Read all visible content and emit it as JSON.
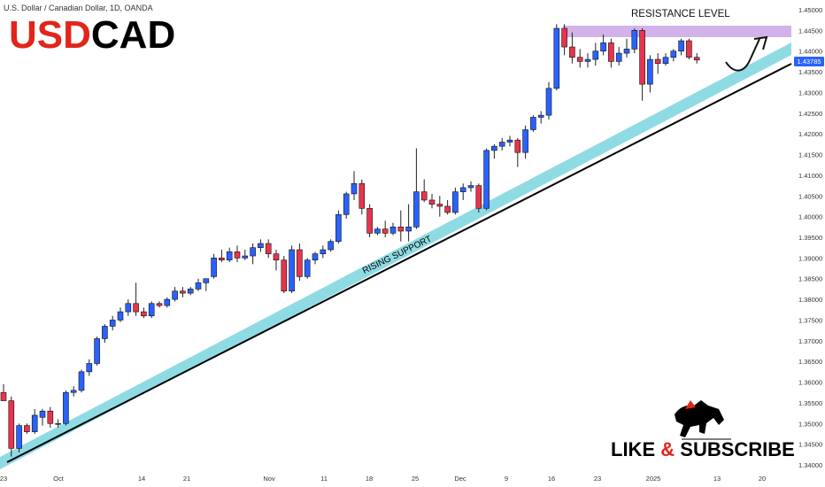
{
  "header": {
    "symbol_text": "U.S. Dollar / Canadian Dollar, 1D, OANDA",
    "title_part1": "USD",
    "title_part2": "CAD"
  },
  "price_tag": "1.43785",
  "annotations": {
    "resistance_label": "RESISTANCE LEVEL",
    "support_label": "RISING SUPPORT"
  },
  "cta": {
    "part1": "LIKE",
    "amp": "&",
    "part2": "SUBSCRIBE"
  },
  "colors": {
    "bull": "#2962ff",
    "bear": "#e8344e",
    "wick": "#222222",
    "resistance_band": "#c9a6e6",
    "support_band": "#8fdbe4",
    "support_line": "#000000",
    "title_red": "#e1251b"
  },
  "icons": [
    "bull-logo-icon",
    "arrow-up-icon"
  ],
  "chart_data": {
    "type": "candlestick",
    "ylim": [
      1.34,
      1.45
    ],
    "y_ticks": [
      "1.45000",
      "1.44500",
      "1.44000",
      "1.43500",
      "1.43000",
      "1.42500",
      "1.42000",
      "1.41500",
      "1.41000",
      "1.40500",
      "1.40000",
      "1.39500",
      "1.39000",
      "1.38500",
      "1.38000",
      "1.37500",
      "1.37000",
      "1.36500",
      "1.36000",
      "1.35500",
      "1.35000",
      "1.34500",
      "1.34000"
    ],
    "x_ticks": [
      "23",
      "Oct",
      "14",
      "21",
      "Nov",
      "11",
      "18",
      "25",
      "Dec",
      "9",
      "16",
      "23",
      "2025",
      "13",
      "20"
    ],
    "candles": [
      {
        "o": 1.3575,
        "h": 1.3595,
        "l": 1.3555,
        "c": 1.3555
      },
      {
        "o": 1.3555,
        "h": 1.3565,
        "l": 1.342,
        "c": 1.344
      },
      {
        "o": 1.344,
        "h": 1.35,
        "l": 1.343,
        "c": 1.3495
      },
      {
        "o": 1.3495,
        "h": 1.35,
        "l": 1.3475,
        "c": 1.348
      },
      {
        "o": 1.348,
        "h": 1.3535,
        "l": 1.3475,
        "c": 1.352
      },
      {
        "o": 1.3515,
        "h": 1.3535,
        "l": 1.3495,
        "c": 1.353
      },
      {
        "o": 1.353,
        "h": 1.354,
        "l": 1.349,
        "c": 1.35
      },
      {
        "o": 1.35,
        "h": 1.351,
        "l": 1.349,
        "c": 1.35
      },
      {
        "o": 1.35,
        "h": 1.358,
        "l": 1.3495,
        "c": 1.3575
      },
      {
        "o": 1.3575,
        "h": 1.359,
        "l": 1.3565,
        "c": 1.358
      },
      {
        "o": 1.358,
        "h": 1.363,
        "l": 1.3575,
        "c": 1.3625
      },
      {
        "o": 1.3625,
        "h": 1.3655,
        "l": 1.3615,
        "c": 1.3645
      },
      {
        "o": 1.3645,
        "h": 1.371,
        "l": 1.364,
        "c": 1.3705
      },
      {
        "o": 1.3705,
        "h": 1.374,
        "l": 1.3695,
        "c": 1.3735
      },
      {
        "o": 1.3735,
        "h": 1.376,
        "l": 1.3725,
        "c": 1.375
      },
      {
        "o": 1.375,
        "h": 1.378,
        "l": 1.3745,
        "c": 1.377
      },
      {
        "o": 1.377,
        "h": 1.38,
        "l": 1.376,
        "c": 1.379
      },
      {
        "o": 1.379,
        "h": 1.384,
        "l": 1.376,
        "c": 1.377
      },
      {
        "o": 1.377,
        "h": 1.378,
        "l": 1.3755,
        "c": 1.376
      },
      {
        "o": 1.376,
        "h": 1.3795,
        "l": 1.3755,
        "c": 1.379
      },
      {
        "o": 1.379,
        "h": 1.3795,
        "l": 1.378,
        "c": 1.3785
      },
      {
        "o": 1.3785,
        "h": 1.3805,
        "l": 1.378,
        "c": 1.38
      },
      {
        "o": 1.38,
        "h": 1.383,
        "l": 1.3795,
        "c": 1.382
      },
      {
        "o": 1.382,
        "h": 1.383,
        "l": 1.3805,
        "c": 1.3815
      },
      {
        "o": 1.3815,
        "h": 1.383,
        "l": 1.381,
        "c": 1.3825
      },
      {
        "o": 1.3825,
        "h": 1.385,
        "l": 1.382,
        "c": 1.384
      },
      {
        "o": 1.384,
        "h": 1.385,
        "l": 1.382,
        "c": 1.385
      },
      {
        "o": 1.3855,
        "h": 1.391,
        "l": 1.385,
        "c": 1.39
      },
      {
        "o": 1.39,
        "h": 1.392,
        "l": 1.389,
        "c": 1.3895
      },
      {
        "o": 1.3895,
        "h": 1.3925,
        "l": 1.389,
        "c": 1.3915
      },
      {
        "o": 1.3915,
        "h": 1.393,
        "l": 1.389,
        "c": 1.39
      },
      {
        "o": 1.39,
        "h": 1.392,
        "l": 1.3895,
        "c": 1.3905
      },
      {
        "o": 1.3905,
        "h": 1.3935,
        "l": 1.3885,
        "c": 1.3925
      },
      {
        "o": 1.3925,
        "h": 1.3945,
        "l": 1.3915,
        "c": 1.3935
      },
      {
        "o": 1.3935,
        "h": 1.3945,
        "l": 1.39,
        "c": 1.391
      },
      {
        "o": 1.391,
        "h": 1.392,
        "l": 1.387,
        "c": 1.3895
      },
      {
        "o": 1.3895,
        "h": 1.3905,
        "l": 1.3815,
        "c": 1.382
      },
      {
        "o": 1.382,
        "h": 1.393,
        "l": 1.3815,
        "c": 1.392
      },
      {
        "o": 1.392,
        "h": 1.3935,
        "l": 1.3845,
        "c": 1.3855
      },
      {
        "o": 1.3855,
        "h": 1.39,
        "l": 1.385,
        "c": 1.3895
      },
      {
        "o": 1.3895,
        "h": 1.3915,
        "l": 1.3885,
        "c": 1.391
      },
      {
        "o": 1.391,
        "h": 1.393,
        "l": 1.39,
        "c": 1.392
      },
      {
        "o": 1.392,
        "h": 1.3945,
        "l": 1.3915,
        "c": 1.394
      },
      {
        "o": 1.394,
        "h": 1.4015,
        "l": 1.3935,
        "c": 1.4005
      },
      {
        "o": 1.4005,
        "h": 1.406,
        "l": 1.3995,
        "c": 1.4055
      },
      {
        "o": 1.4055,
        "h": 1.411,
        "l": 1.404,
        "c": 1.408
      },
      {
        "o": 1.408,
        "h": 1.409,
        "l": 1.4005,
        "c": 1.402
      },
      {
        "o": 1.402,
        "h": 1.403,
        "l": 1.395,
        "c": 1.396
      },
      {
        "o": 1.396,
        "h": 1.3975,
        "l": 1.3955,
        "c": 1.397
      },
      {
        "o": 1.397,
        "h": 1.399,
        "l": 1.395,
        "c": 1.396
      },
      {
        "o": 1.396,
        "h": 1.3985,
        "l": 1.3955,
        "c": 1.3975
      },
      {
        "o": 1.3975,
        "h": 1.4015,
        "l": 1.394,
        "c": 1.3965
      },
      {
        "o": 1.3965,
        "h": 1.403,
        "l": 1.394,
        "c": 1.3975
      },
      {
        "o": 1.3975,
        "h": 1.4165,
        "l": 1.397,
        "c": 1.406
      },
      {
        "o": 1.406,
        "h": 1.409,
        "l": 1.4035,
        "c": 1.404
      },
      {
        "o": 1.404,
        "h": 1.4055,
        "l": 1.402,
        "c": 1.403
      },
      {
        "o": 1.403,
        "h": 1.405,
        "l": 1.4,
        "c": 1.4025
      },
      {
        "o": 1.4025,
        "h": 1.404,
        "l": 1.4005,
        "c": 1.401
      },
      {
        "o": 1.401,
        "h": 1.407,
        "l": 1.4005,
        "c": 1.406
      },
      {
        "o": 1.406,
        "h": 1.408,
        "l": 1.404,
        "c": 1.407
      },
      {
        "o": 1.407,
        "h": 1.4085,
        "l": 1.406,
        "c": 1.4075
      },
      {
        "o": 1.4075,
        "h": 1.408,
        "l": 1.401,
        "c": 1.402
      },
      {
        "o": 1.402,
        "h": 1.4165,
        "l": 1.4015,
        "c": 1.416
      },
      {
        "o": 1.416,
        "h": 1.4175,
        "l": 1.414,
        "c": 1.417
      },
      {
        "o": 1.417,
        "h": 1.419,
        "l": 1.416,
        "c": 1.418
      },
      {
        "o": 1.418,
        "h": 1.4195,
        "l": 1.417,
        "c": 1.4185
      },
      {
        "o": 1.4185,
        "h": 1.419,
        "l": 1.412,
        "c": 1.4155
      },
      {
        "o": 1.4155,
        "h": 1.422,
        "l": 1.414,
        "c": 1.421
      },
      {
        "o": 1.421,
        "h": 1.4245,
        "l": 1.4205,
        "c": 1.424
      },
      {
        "o": 1.424,
        "h": 1.4255,
        "l": 1.4225,
        "c": 1.4245
      },
      {
        "o": 1.4245,
        "h": 1.4325,
        "l": 1.4235,
        "c": 1.431
      },
      {
        "o": 1.431,
        "h": 1.4465,
        "l": 1.4305,
        "c": 1.4455
      },
      {
        "o": 1.4455,
        "h": 1.4465,
        "l": 1.439,
        "c": 1.441
      },
      {
        "o": 1.441,
        "h": 1.4445,
        "l": 1.437,
        "c": 1.4385
      },
      {
        "o": 1.4385,
        "h": 1.4405,
        "l": 1.436,
        "c": 1.4375
      },
      {
        "o": 1.4375,
        "h": 1.4395,
        "l": 1.436,
        "c": 1.438
      },
      {
        "o": 1.438,
        "h": 1.442,
        "l": 1.4365,
        "c": 1.44
      },
      {
        "o": 1.44,
        "h": 1.444,
        "l": 1.439,
        "c": 1.442
      },
      {
        "o": 1.442,
        "h": 1.443,
        "l": 1.436,
        "c": 1.4375
      },
      {
        "o": 1.4375,
        "h": 1.441,
        "l": 1.4365,
        "c": 1.4395
      },
      {
        "o": 1.4395,
        "h": 1.443,
        "l": 1.4385,
        "c": 1.4405
      },
      {
        "o": 1.4405,
        "h": 1.4455,
        "l": 1.4395,
        "c": 1.445
      },
      {
        "o": 1.445,
        "h": 1.4455,
        "l": 1.428,
        "c": 1.432
      },
      {
        "o": 1.432,
        "h": 1.439,
        "l": 1.43,
        "c": 1.438
      },
      {
        "o": 1.438,
        "h": 1.4395,
        "l": 1.4345,
        "c": 1.437
      },
      {
        "o": 1.437,
        "h": 1.4395,
        "l": 1.4365,
        "c": 1.4385
      },
      {
        "o": 1.4385,
        "h": 1.4405,
        "l": 1.4375,
        "c": 1.44
      },
      {
        "o": 1.44,
        "h": 1.443,
        "l": 1.439,
        "c": 1.4425
      },
      {
        "o": 1.4425,
        "h": 1.443,
        "l": 1.438,
        "c": 1.4385
      },
      {
        "o": 1.4385,
        "h": 1.4395,
        "l": 1.437,
        "c": 1.43785
      }
    ]
  }
}
